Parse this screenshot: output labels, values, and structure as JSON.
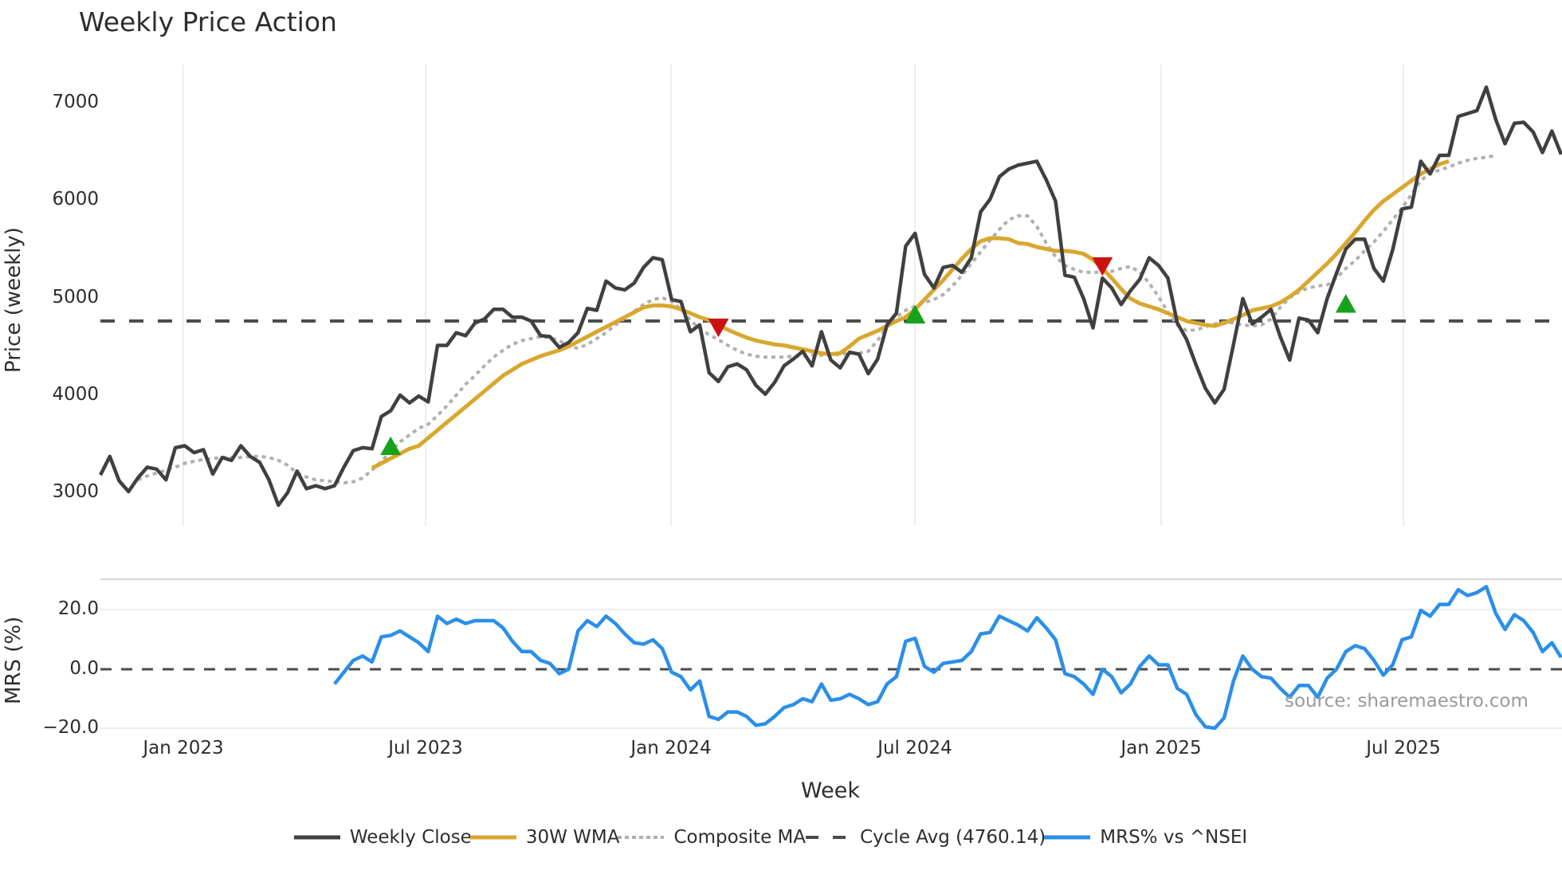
{
  "title": "Weekly Price Action",
  "axes": {
    "price_ylabel": "Price (weekly)",
    "mrs_ylabel": "MRS (%)",
    "xlabel": "Week",
    "price_ticks": [
      "7000",
      "6000",
      "5000",
      "4000",
      "3000"
    ],
    "mrs_ticks": [
      "20.0",
      "0.0",
      "−20.0"
    ],
    "x_ticks": [
      "Jan 2023",
      "Jul 2023",
      "Jan 2024",
      "Jul 2024",
      "Jan 2025",
      "Jul 2025"
    ]
  },
  "source_label": "source: sharemaestro.com",
  "legend": [
    {
      "label": "Weekly Close",
      "color": "#404040",
      "style": "solid"
    },
    {
      "label": "30W WMA",
      "color": "#d9a72e",
      "style": "solid"
    },
    {
      "label": "Composite MA",
      "color": "#b0b0b0",
      "style": "dotted"
    },
    {
      "label": "Cycle Avg (4760.14)",
      "color": "#4a4a4a",
      "style": "dashed"
    },
    {
      "label": "MRS% vs ^NSEI",
      "color": "#2b8fe8",
      "style": "solid"
    }
  ],
  "chart_data": [
    {
      "type": "line",
      "title": "Weekly Price Action",
      "xlabel": "Week",
      "ylabel": "Price (weekly)",
      "ylim": [
        2650,
        7400
      ],
      "x_start": "2022-11-04",
      "x_step": "1 week",
      "x_tick_labels": [
        "Jan 2023",
        "Jul 2023",
        "Jan 2024",
        "Jul 2024",
        "Jan 2025",
        "Jul 2025"
      ],
      "grid": "vertical",
      "legend_position": "bottom",
      "series": [
        {
          "name": "Weekly Close",
          "color": "#404040",
          "values": [
            3180,
            3370,
            3120,
            3010,
            3150,
            3260,
            3240,
            3130,
            3460,
            3480,
            3410,
            3440,
            3190,
            3360,
            3330,
            3480,
            3370,
            3310,
            3130,
            2870,
            3000,
            3220,
            3040,
            3070,
            3040,
            3070,
            3260,
            3430,
            3460,
            3450,
            3780,
            3840,
            4000,
            3920,
            3990,
            3930,
            4510,
            4510,
            4640,
            4610,
            4740,
            4780,
            4880,
            4880,
            4800,
            4800,
            4760,
            4610,
            4600,
            4490,
            4540,
            4640,
            4890,
            4870,
            5170,
            5100,
            5080,
            5150,
            5310,
            5410,
            5390,
            4980,
            4960,
            4650,
            4720,
            4230,
            4140,
            4290,
            4320,
            4260,
            4100,
            4010,
            4130,
            4300,
            4370,
            4450,
            4300,
            4650,
            4360,
            4280,
            4440,
            4420,
            4220,
            4370,
            4720,
            4840,
            5530,
            5660,
            5240,
            5100,
            5310,
            5330,
            5260,
            5410,
            5880,
            6010,
            6240,
            6320,
            6360,
            6380,
            6400,
            6210,
            5990,
            5230,
            5210,
            4990,
            4690,
            5200,
            5100,
            4930,
            5070,
            5190,
            5410,
            5330,
            5200,
            4740,
            4570,
            4310,
            4070,
            3920,
            4060,
            4520,
            4990,
            4730,
            4800,
            4880,
            4600,
            4360,
            4790,
            4770,
            4640,
            4990,
            5250,
            5500,
            5600,
            5600,
            5300,
            5170,
            5490,
            5910,
            5930,
            6400,
            6270,
            6460,
            6460,
            6860,
            6890,
            6920,
            7160,
            6830,
            6580,
            6790,
            6800,
            6700,
            6490,
            6710,
            6470
          ]
        },
        {
          "name": "30W WMA",
          "color": "#d9a72e",
          "start_index": 29,
          "values": [
            3250,
            3300,
            3350,
            3400,
            3450,
            3480,
            3560,
            3640,
            3720,
            3800,
            3880,
            3960,
            4040,
            4120,
            4200,
            4260,
            4320,
            4360,
            4400,
            4430,
            4460,
            4500,
            4550,
            4600,
            4650,
            4700,
            4750,
            4800,
            4850,
            4900,
            4920,
            4920,
            4910,
            4880,
            4840,
            4800,
            4770,
            4720,
            4670,
            4630,
            4590,
            4560,
            4540,
            4520,
            4510,
            4490,
            4470,
            4450,
            4430,
            4420,
            4430,
            4500,
            4580,
            4620,
            4660,
            4710,
            4760,
            4800,
            4880,
            4980,
            5080,
            5180,
            5290,
            5400,
            5500,
            5580,
            5610,
            5610,
            5600,
            5560,
            5550,
            5520,
            5500,
            5480,
            5480,
            5470,
            5450,
            5390,
            5300,
            5200,
            5090,
            4990,
            4940,
            4910,
            4880,
            4840,
            4800,
            4760,
            4740,
            4720,
            4710,
            4740,
            4780,
            4820,
            4870,
            4890,
            4910,
            4950,
            5010,
            5080,
            5170,
            5260,
            5350,
            5450,
            5560,
            5670,
            5790,
            5900,
            5990,
            6060,
            6130,
            6200,
            6270,
            6320,
            6370,
            6400
          ]
        },
        {
          "name": "Composite MA",
          "color": "#b0b0b0",
          "start_index": 4,
          "values": [
            3130,
            3170,
            3200,
            3230,
            3260,
            3300,
            3320,
            3340,
            3350,
            3360,
            3360,
            3360,
            3370,
            3370,
            3360,
            3330,
            3280,
            3200,
            3160,
            3130,
            3120,
            3110,
            3100,
            3110,
            3150,
            3230,
            3320,
            3420,
            3520,
            3590,
            3660,
            3700,
            3790,
            3890,
            4000,
            4110,
            4200,
            4300,
            4390,
            4460,
            4520,
            4560,
            4580,
            4600,
            4590,
            4560,
            4500,
            4480,
            4520,
            4580,
            4640,
            4720,
            4790,
            4860,
            4930,
            4980,
            5000,
            4960,
            4880,
            4770,
            4680,
            4620,
            4570,
            4510,
            4460,
            4420,
            4400,
            4390,
            4390,
            4390,
            4400,
            4400,
            4410,
            4410,
            4410,
            4420,
            4430,
            4430,
            4450,
            4560,
            4700,
            4800,
            4870,
            4910,
            4950,
            4980,
            5030,
            5120,
            5230,
            5350,
            5470,
            5590,
            5700,
            5800,
            5840,
            5840,
            5730,
            5560,
            5420,
            5330,
            5290,
            5260,
            5260,
            5260,
            5270,
            5300,
            5320,
            5260,
            5150,
            5010,
            4850,
            4720,
            4660,
            4670,
            4700,
            4730,
            4750,
            4740,
            4720,
            4710,
            4720,
            4780,
            4900,
            5000,
            5060,
            5100,
            5120,
            5130,
            5200,
            5300,
            5380,
            5480,
            5570,
            5680,
            5800,
            5920,
            6060,
            6200,
            6280,
            6310,
            6340,
            6380,
            6410,
            6430,
            6440,
            6460
          ]
        },
        {
          "name": "Cycle Avg (4760.14)",
          "color": "#4a4a4a",
          "constant": 4760.14
        }
      ],
      "markers": [
        {
          "type": "buy",
          "shape": "triangle-up",
          "color": "#17a21a",
          "index": 31,
          "value": 3470
        },
        {
          "type": "sell",
          "shape": "triangle-down",
          "color": "#cc1111",
          "index": 66,
          "value": 4700
        },
        {
          "type": "buy",
          "shape": "triangle-up",
          "color": "#17a21a",
          "index": 87,
          "value": 4820
        },
        {
          "type": "sell",
          "shape": "triangle-down",
          "color": "#cc1111",
          "index": 107,
          "value": 5330
        },
        {
          "type": "buy",
          "shape": "triangle-up",
          "color": "#17a21a",
          "index": 133,
          "value": 4930
        }
      ]
    },
    {
      "type": "line",
      "title": "",
      "ylabel": "MRS (%)",
      "ylim": [
        -21,
        31
      ],
      "x_start": "2022-11-04",
      "x_step": "1 week",
      "grid": "horizontal",
      "series": [
        {
          "name": "MRS% vs ^NSEI",
          "color": "#2b8fe8",
          "start_index": 25,
          "values": [
            -5,
            -1,
            3,
            4.5,
            2.5,
            11,
            11.5,
            13,
            11,
            9,
            6,
            18,
            15.5,
            17,
            15.5,
            16.5,
            16.5,
            16.5,
            14,
            9.5,
            6,
            6,
            3,
            2,
            -1.5,
            0,
            13,
            16.5,
            14.5,
            18,
            15.5,
            12,
            9,
            8.5,
            10,
            7,
            -1,
            -2.5,
            -7,
            -4,
            -16,
            -17,
            -14.5,
            -14.5,
            -16,
            -19,
            -18.5,
            -16,
            -13,
            -12,
            -10,
            -11,
            -5,
            -10.5,
            -10,
            -8.5,
            -10,
            -12,
            -11,
            -5,
            -2.5,
            9.5,
            10.5,
            1,
            -1,
            2,
            2.5,
            3,
            6,
            12,
            12.5,
            18,
            16.5,
            15,
            13,
            17.5,
            14,
            10,
            -1.5,
            -2.5,
            -5,
            -8.5,
            0,
            -2.5,
            -8,
            -5,
            1,
            4.5,
            1.5,
            1.5,
            -6.5,
            -8.5,
            -15.5,
            -19.5,
            -20,
            -16.5,
            -4,
            4.5,
            0,
            -2.5,
            -3,
            -6.5,
            -9.5,
            -5.5,
            -5.5,
            -9.5,
            -3,
            0,
            6,
            8,
            7,
            3,
            -2,
            1.5,
            10,
            11,
            20,
            18,
            22,
            22,
            27,
            25,
            26,
            28,
            19,
            13.5,
            18.5,
            16.5,
            12.5,
            6,
            9,
            4
          ]
        },
        {
          "name": "zero line",
          "color": "#4a4a4a",
          "constant": 0
        }
      ]
    }
  ]
}
